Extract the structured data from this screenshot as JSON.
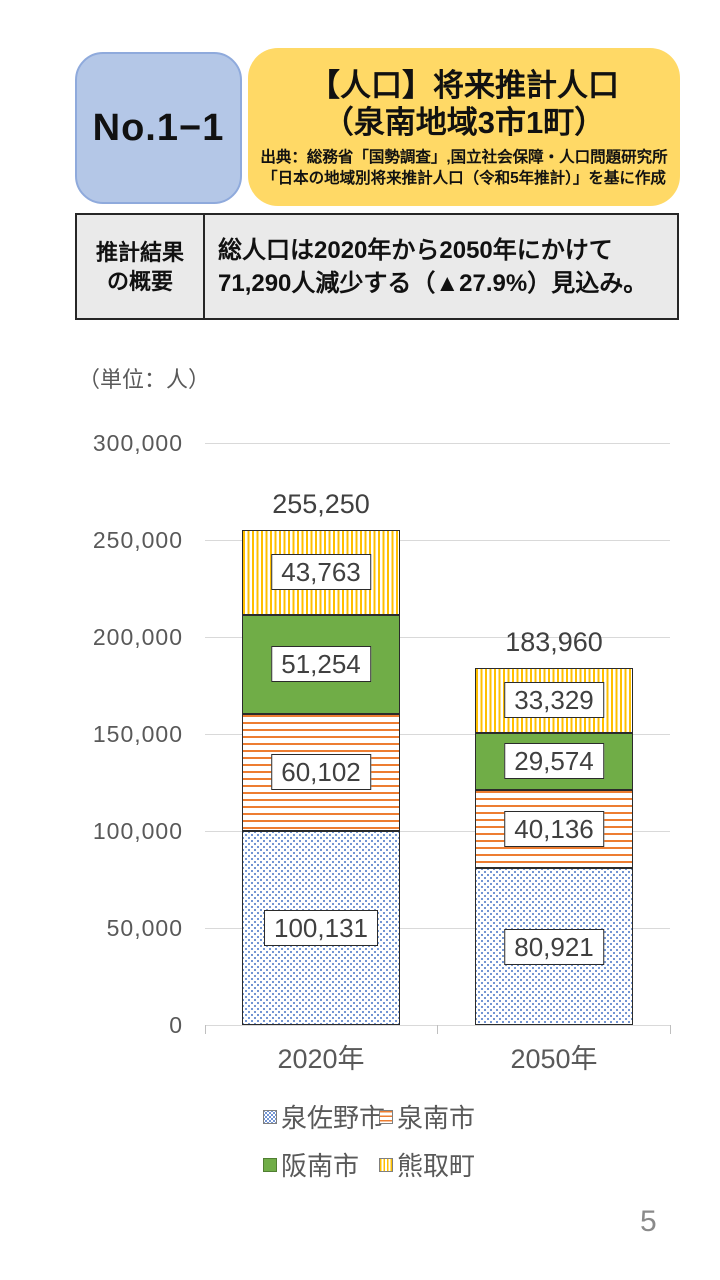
{
  "header": {
    "no_label": "No.1−1",
    "title_line1": "【人口】将来推計人口",
    "title_line2": "（泉南地域3市1町）",
    "source_line1": "出典：総務省「国勢調査」,国立社会保障・人口問題研究所",
    "source_line2": "「日本の地域別将来推計人口（令和5年推計）」を基に作成",
    "no_box_color": "#b4c7e7",
    "no_box_border_color": "#8faadc",
    "title_box_color": "#ffd966"
  },
  "summary": {
    "label_line1": "推計結果",
    "label_line2": "の概要",
    "text_line1": "総人口は2020年から2050年にかけて",
    "text_line2": "71,290人減少する（▲27.9%）見込み。",
    "background_color": "#eaeaea"
  },
  "chart_data": {
    "type": "bar",
    "stacked": true,
    "unit_label": "（単位：人）",
    "categories": [
      "2020年",
      "2050年"
    ],
    "series": [
      {
        "name": "泉佐野市",
        "values": [
          100131,
          80921
        ],
        "pattern": "dots",
        "color": "#4472c4"
      },
      {
        "name": "泉南市",
        "values": [
          60102,
          40136
        ],
        "pattern": "hstripes",
        "color": "#ed7d31"
      },
      {
        "name": "阪南市",
        "values": [
          51254,
          29574
        ],
        "pattern": "solid",
        "color": "#70ad47"
      },
      {
        "name": "熊取町",
        "values": [
          43763,
          33329
        ],
        "pattern": "vstripes",
        "color": "#ffc000"
      }
    ],
    "segment_labels": [
      [
        "100,131",
        "60,102",
        "51,254",
        "43,763"
      ],
      [
        "80,921",
        "40,136",
        "29,574",
        "33,329"
      ]
    ],
    "totals": [
      "255,250",
      "183,960"
    ],
    "ylim": [
      0,
      300000
    ],
    "ytick_step": 50000,
    "yticks": [
      "0",
      "50,000",
      "100,000",
      "150,000",
      "200,000",
      "250,000",
      "300,000"
    ],
    "grid": true,
    "gridline_color": "#d9d9d9",
    "legend_position": "bottom"
  },
  "page": {
    "number": "5"
  }
}
